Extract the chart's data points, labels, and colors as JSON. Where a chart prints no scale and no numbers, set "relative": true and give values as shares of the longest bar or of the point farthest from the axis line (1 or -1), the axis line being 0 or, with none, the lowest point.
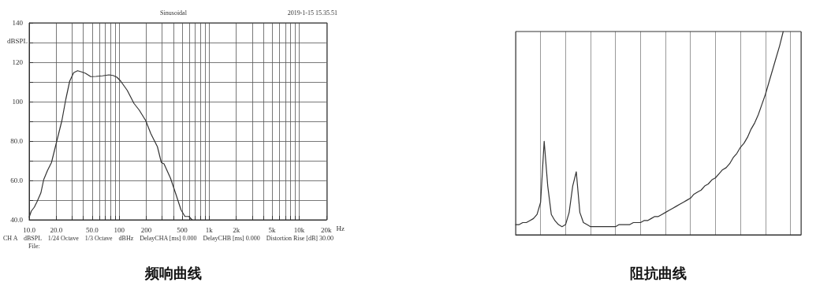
{
  "chart_data": [
    {
      "type": "line",
      "title": "频响曲线",
      "xlabel": "Hz",
      "ylabel": "dBSPL",
      "log": "x",
      "annotations": [
        "Sinusoidal",
        "2019-1-15 15.35.51",
        "CH A    dBSPL    1/24 Octave    1/3 Octave    dBHz    DelayCHA [ms] 0.000    DelayCHB [ms] 0.000    Distortion Rise [dB] 30.00",
        "File:"
      ],
      "x": [
        10,
        10.55,
        11.4,
        12.2,
        13.5,
        14.5,
        16.0,
        17.7,
        20.2,
        23.1,
        25.5,
        28.2,
        31.2,
        34.5,
        38.2,
        42.2,
        48.3,
        55.2,
        65.2,
        77.1,
        85.3,
        94.3,
        104,
        123,
        146,
        167,
        197,
        225,
        266,
        294,
        315,
        372,
        426,
        486,
        538,
        595,
        645
      ],
      "series": [
        {
          "color": "#333333",
          "values": [
            41.3,
            44.4,
            46.4,
            49.1,
            53.7,
            60.4,
            65.1,
            69.1,
            79.7,
            90.4,
            101.1,
            110.4,
            114.7,
            115.7,
            115.1,
            114.4,
            112.7,
            112.8,
            113.1,
            113.6,
            113.3,
            112.4,
            110.4,
            105.7,
            99.1,
            95.7,
            90.4,
            83.7,
            77.1,
            69.1,
            68.4,
            61.1,
            53.1,
            45.1,
            41.7,
            41.7,
            40
          ]
        }
      ],
      "xlim": [
        10,
        20000
      ],
      "xticks": [
        {
          "value": 10,
          "label": "10.0"
        },
        {
          "value": 20,
          "label": "20.0"
        },
        {
          "value": 30,
          "label": null
        },
        {
          "value": 40,
          "label": null
        },
        {
          "value": 50,
          "label": "50.0"
        },
        {
          "value": 60,
          "label": null
        },
        {
          "value": 70,
          "label": null
        },
        {
          "value": 80,
          "label": null
        },
        {
          "value": 90,
          "label": null
        },
        100,
        200,
        {
          "value": 300,
          "label": null
        },
        {
          "value": 400,
          "label": null
        },
        500,
        {
          "value": 600,
          "label": null
        },
        {
          "value": 700,
          "label": null
        },
        {
          "value": 800,
          "label": null
        },
        {
          "value": 900,
          "label": null
        },
        {
          "value": 1000,
          "label": "1k"
        },
        {
          "value": 2000,
          "label": "2k"
        },
        {
          "value": 3000,
          "label": null
        },
        {
          "value": 4000,
          "label": null
        },
        {
          "value": 5000,
          "label": "5k"
        },
        {
          "value": 6000,
          "label": null
        },
        {
          "value": 7000,
          "label": null
        },
        {
          "value": 8000,
          "label": null
        },
        {
          "value": 9000,
          "label": null
        },
        {
          "value": 10000,
          "label": "10k"
        },
        {
          "value": 20000,
          "label": "20k"
        }
      ],
      "ylim": [
        40,
        140
      ],
      "yticks": [
        {
          "value": 40,
          "label": "40.0"
        },
        {
          "value": 50,
          "label": null
        },
        {
          "value": 60,
          "label": "60.0"
        },
        {
          "value": 70,
          "label": null
        },
        {
          "value": 80,
          "label": "80.0"
        },
        {
          "value": 90,
          "label": null
        },
        100,
        {
          "value": 110,
          "label": null
        },
        120,
        {
          "value": 130,
          "label": null
        },
        140
      ],
      "grid": true,
      "marker": "none",
      "line_style": "solid"
    },
    {
      "type": "line",
      "title": "阻抗曲线",
      "relative": true,
      "categories": [
        null,
        null,
        null,
        null,
        null,
        null,
        null,
        null,
        null,
        null,
        null,
        null,
        null,
        null,
        null,
        null,
        null,
        null,
        null,
        null,
        null,
        null,
        null,
        null,
        null,
        null,
        null,
        null,
        null,
        null,
        null,
        null,
        null,
        null,
        null,
        null,
        null,
        null,
        null,
        null,
        null,
        null,
        null,
        null,
        null,
        null,
        null,
        null,
        null,
        null,
        null,
        null,
        null,
        null,
        null,
        null,
        null,
        null,
        null,
        null,
        null,
        null,
        null,
        null,
        null,
        null,
        null,
        null,
        null,
        null,
        null,
        null,
        null,
        null,
        null,
        null,
        null,
        null,
        null,
        null,
        null
      ],
      "series": [
        {
          "color": "#333333",
          "values": [
            0.05,
            0.05,
            0.06,
            0.06,
            0.07,
            0.08,
            0.1,
            0.16,
            0.46,
            0.24,
            0.1,
            0.07,
            0.05,
            0.04,
            0.05,
            0.11,
            0.24,
            0.31,
            0.11,
            0.06,
            0.05,
            0.04,
            0.04,
            0.04,
            0.04,
            0.04,
            0.04,
            0.04,
            0.04,
            0.05,
            0.05,
            0.05,
            0.05,
            0.06,
            0.06,
            0.06,
            0.07,
            0.07,
            0.08,
            0.09,
            0.09,
            0.1,
            0.11,
            0.12,
            0.13,
            0.14,
            0.15,
            0.16,
            0.17,
            0.18,
            0.2,
            0.21,
            0.22,
            0.24,
            0.25,
            0.27,
            0.28,
            0.3,
            0.32,
            0.33,
            0.35,
            0.38,
            0.4,
            0.43,
            0.45,
            0.48,
            0.52,
            0.55,
            0.59,
            0.64,
            0.69,
            0.75,
            0.81,
            0.87,
            0.93,
            1,
            null,
            null,
            null,
            null,
            null
          ]
        }
      ],
      "grid": true,
      "marker": "none",
      "line_style": "solid"
    }
  ]
}
